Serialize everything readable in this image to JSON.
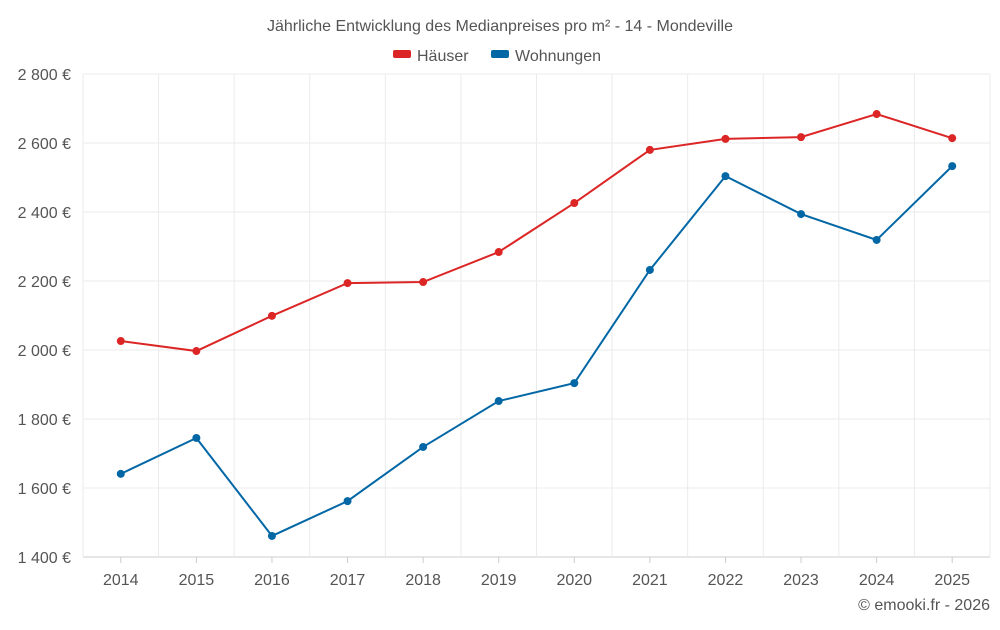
{
  "chart_data": {
    "type": "line",
    "title": "Jährliche Entwicklung des Medianpreises pro m² - 14 - Mondeville",
    "xlabel": "",
    "ylabel": "",
    "categories": [
      "2014",
      "2015",
      "2016",
      "2017",
      "2018",
      "2019",
      "2020",
      "2021",
      "2022",
      "2023",
      "2024",
      "2025"
    ],
    "ylim": [
      1400,
      2800
    ],
    "yticks": [
      1400,
      1600,
      1800,
      2000,
      2200,
      2400,
      2600,
      2800
    ],
    "ytick_labels": [
      "1 400 €",
      "1 600 €",
      "1 800 €",
      "2 000 €",
      "2 200 €",
      "2 400 €",
      "2 600 €",
      "2 800 €"
    ],
    "grid": true,
    "legend_position": "top-center",
    "series": [
      {
        "name": "Häuser",
        "color": "#dc2626",
        "values": [
          2026,
          1997,
          2099,
          2194,
          2197,
          2284,
          2426,
          2580,
          2612,
          2617,
          2684,
          2614
        ]
      },
      {
        "name": "Wohnungen",
        "color": "#0367a6",
        "values": [
          1641,
          1745,
          1461,
          1562,
          1719,
          1852,
          1904,
          2232,
          2504,
          2394,
          2319,
          2533
        ]
      }
    ]
  },
  "footer": {
    "copyright": "© emooki.fr - 2026"
  }
}
